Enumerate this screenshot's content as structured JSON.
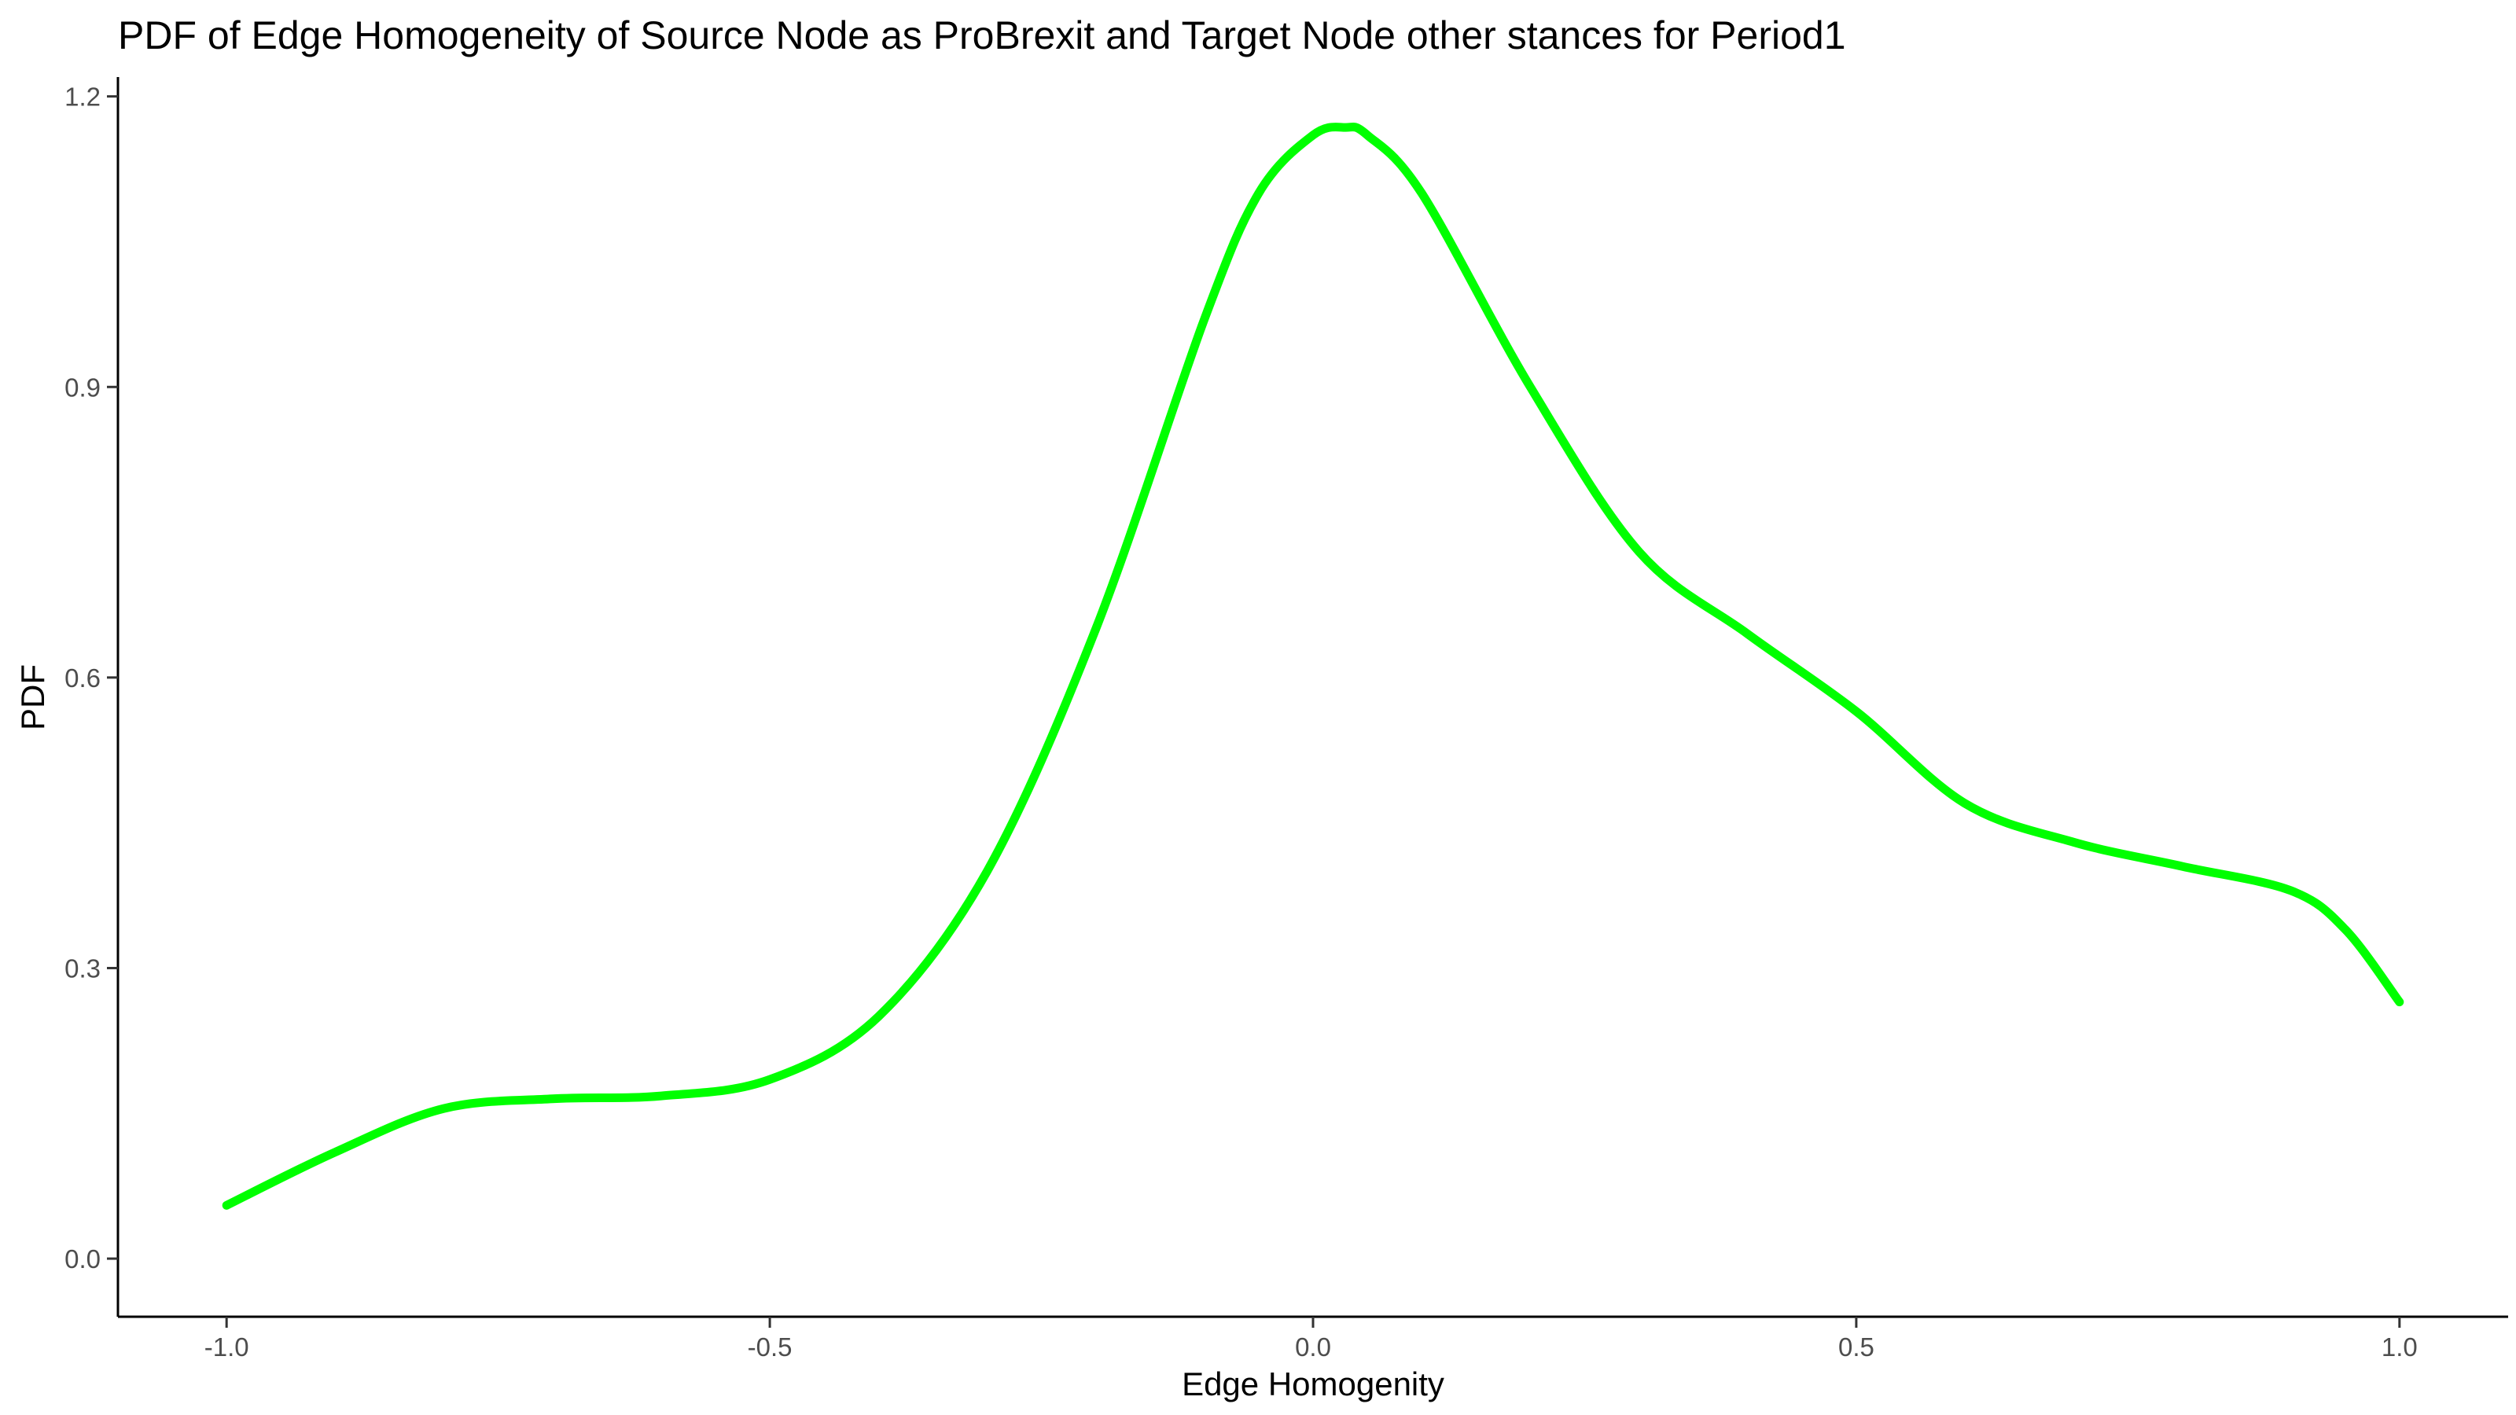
{
  "chart_data": {
    "type": "line",
    "title": "PDF of Edge Homogeneity of Source Node as ProBrexit and Target Node other stances for Period1",
    "xlabel": "Edge Homogenity",
    "ylabel": "PDF",
    "xlim": [
      -1.1,
      1.1
    ],
    "ylim": [
      -0.06,
      1.22
    ],
    "x_ticks": [
      -1.0,
      -0.5,
      0.0,
      0.5,
      1.0
    ],
    "x_tick_labels": [
      "-1.0",
      "-0.5",
      "0.0",
      "0.5",
      "1.0"
    ],
    "y_ticks": [
      0.0,
      0.3,
      0.6,
      0.9,
      1.2
    ],
    "y_tick_labels": [
      "0.0",
      "0.3",
      "0.6",
      "0.9",
      "1.2"
    ],
    "grid": false,
    "legend": "none",
    "series": [
      {
        "color": "#00ff00",
        "x": [
          -1.0,
          -0.9,
          -0.8,
          -0.7,
          -0.6,
          -0.5,
          -0.4,
          -0.3,
          -0.2,
          -0.1,
          -0.05,
          0.0,
          0.03,
          0.05,
          0.1,
          0.2,
          0.3,
          0.4,
          0.5,
          0.6,
          0.7,
          0.8,
          0.9,
          0.95,
          1.0
        ],
        "y": [
          0.055,
          0.11,
          0.155,
          0.165,
          0.168,
          0.185,
          0.25,
          0.4,
          0.65,
          0.97,
          1.1,
          1.16,
          1.168,
          1.16,
          1.1,
          0.9,
          0.73,
          0.645,
          0.565,
          0.47,
          0.43,
          0.405,
          0.38,
          0.34,
          0.265
        ]
      }
    ]
  }
}
